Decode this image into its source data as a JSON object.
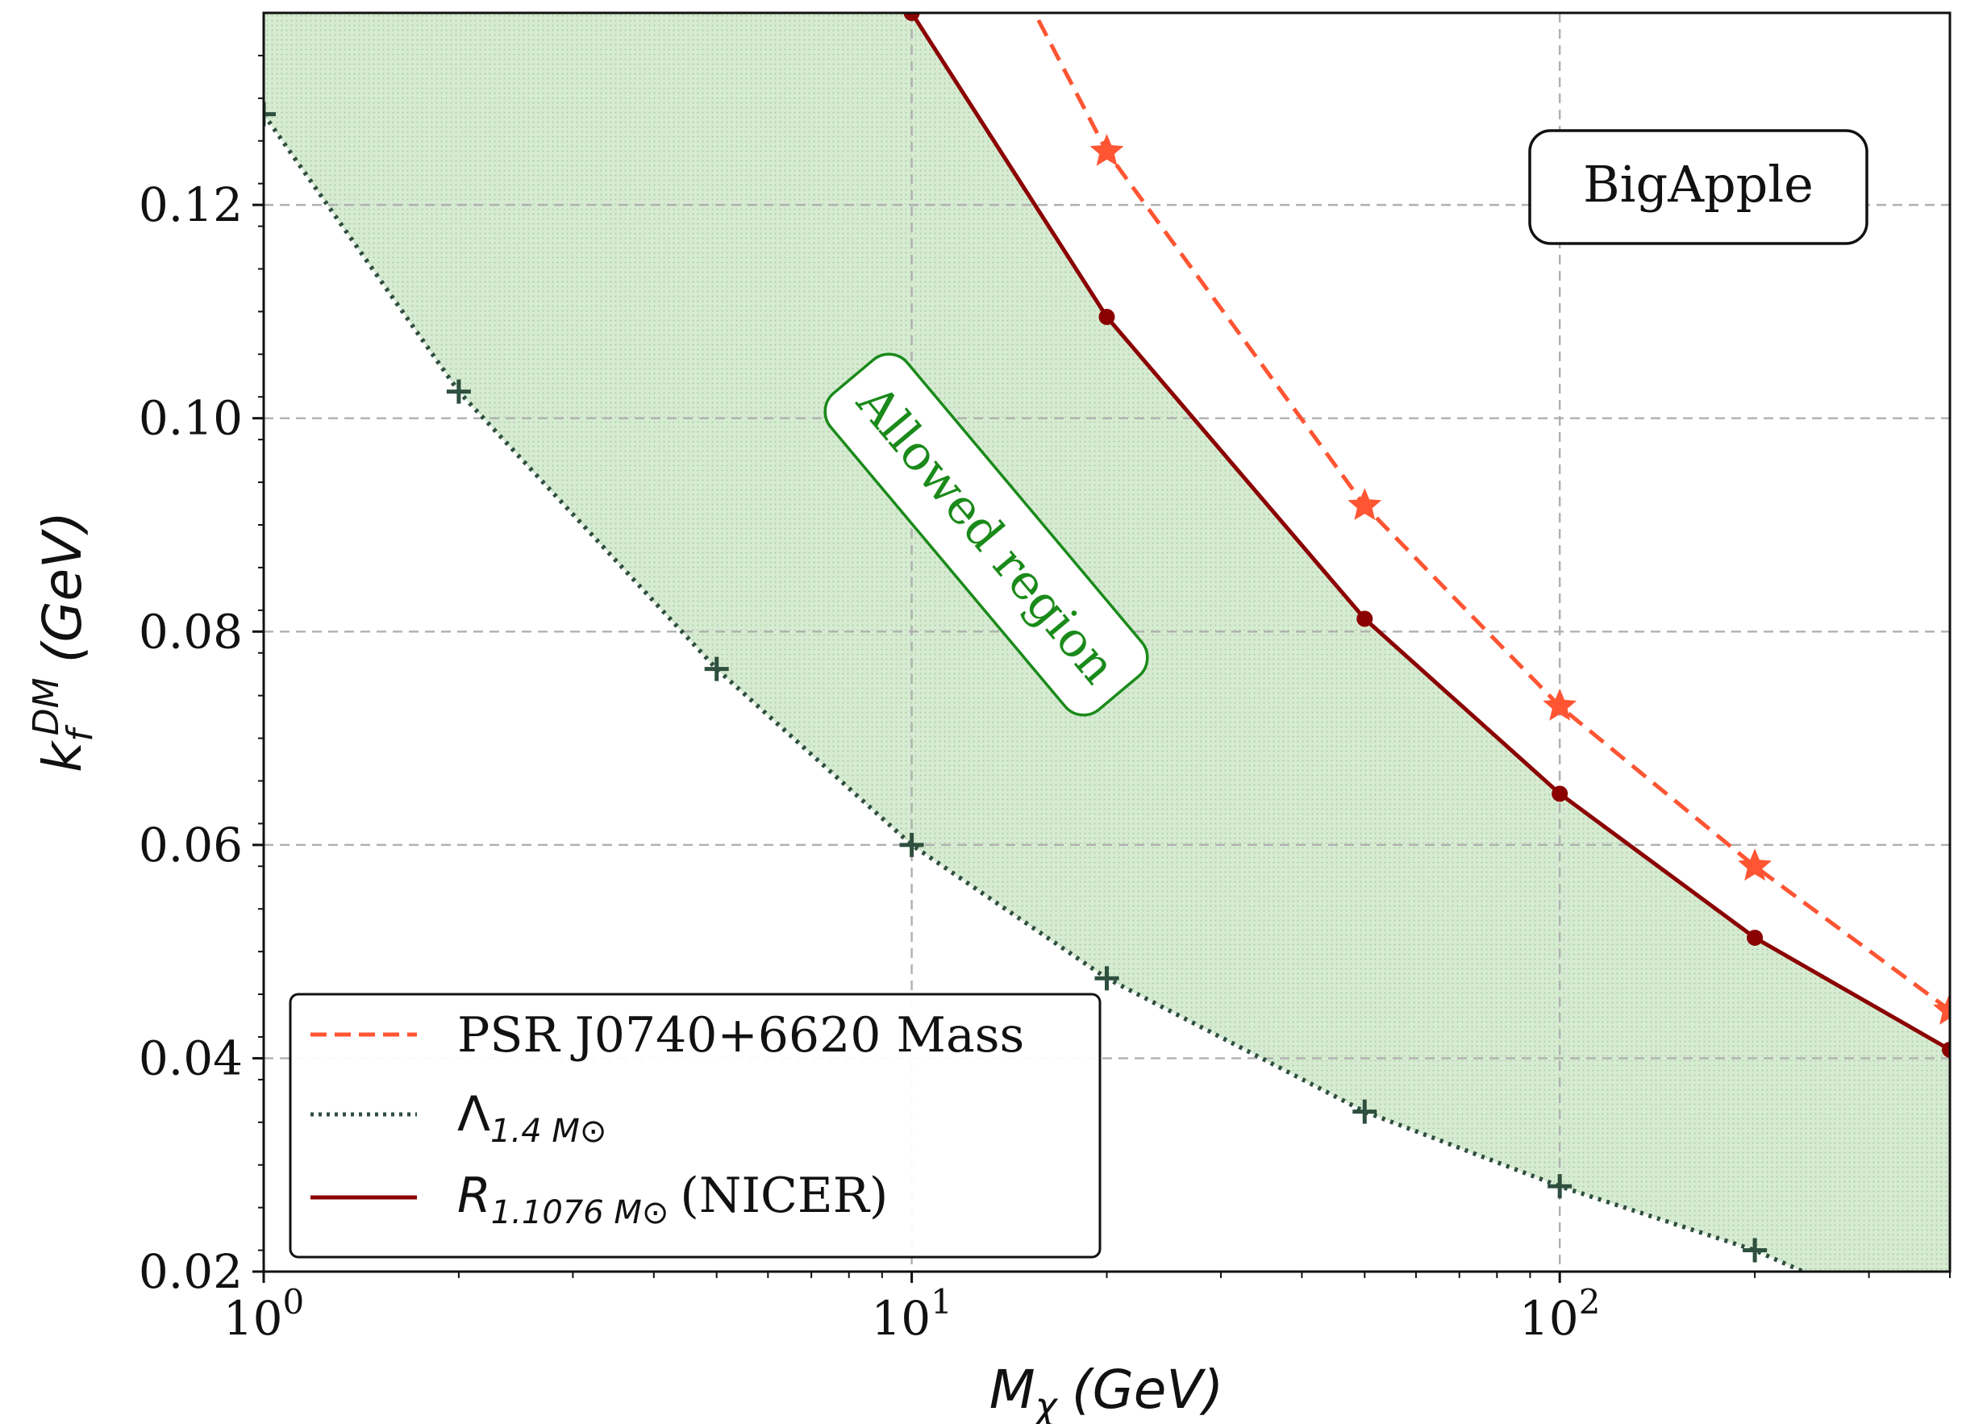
{
  "chart_data": {
    "type": "line",
    "xscale": "log",
    "xlim": [
      1,
      400
    ],
    "ylim": [
      0.02,
      0.138
    ],
    "x_ticks": [
      {
        "value": 1,
        "base": "10",
        "exp": "0"
      },
      {
        "value": 10,
        "base": "10",
        "exp": "1"
      },
      {
        "value": 100,
        "base": "10",
        "exp": "2"
      }
    ],
    "y_ticks": [
      "0.02",
      "0.04",
      "0.06",
      "0.08",
      "0.10",
      "0.12"
    ],
    "xlabel": {
      "var": "M",
      "sub": "χ",
      "unit": "(GeV)"
    },
    "ylabel": {
      "var": "k",
      "sub": "f",
      "sup": "DM",
      "unit": "(GeV)"
    },
    "grid": true,
    "legend_position": "bottom-left",
    "annotations": {
      "model": "BigApple",
      "region": "Allowed region"
    },
    "series": [
      {
        "key": "psr",
        "name": "PSR J0740+6620 Mass",
        "color": "#ff5533",
        "style": "dashed",
        "marker": "star",
        "x": [
          15,
          20,
          50,
          100,
          200,
          400
        ],
        "y": [
          0.1396,
          0.125,
          0.0918,
          0.073,
          0.058,
          0.0445
        ],
        "marked": [
          false,
          true,
          true,
          true,
          true,
          true
        ]
      },
      {
        "key": "lambda",
        "name": "Λ",
        "name_sub": "1.4 M⊙",
        "color": "#2f4f3f",
        "style": "dotted",
        "marker": "plus",
        "x": [
          1,
          2,
          5,
          10,
          20,
          50,
          100,
          200,
          270
        ],
        "y": [
          0.1285,
          0.1025,
          0.0765,
          0.06,
          0.0475,
          0.035,
          0.028,
          0.022,
          0.0185
        ],
        "marked": [
          true,
          true,
          true,
          true,
          true,
          true,
          true,
          true,
          false
        ]
      },
      {
        "key": "nicer",
        "name": "R",
        "name_sub": "1.1076 M⊙",
        "name_suffix": "(NICER)",
        "color": "#8b0000",
        "style": "solid",
        "marker": "circle",
        "x": [
          10,
          20,
          50,
          100,
          200,
          400
        ],
        "y": [
          0.138,
          0.1095,
          0.0812,
          0.0648,
          0.0513,
          0.0408
        ],
        "marked": [
          true,
          true,
          true,
          true,
          true,
          true
        ]
      }
    ],
    "fill": {
      "color": "#d4ead0",
      "hatch": "#a9cfa3",
      "between": [
        "lambda",
        "nicer"
      ]
    }
  }
}
